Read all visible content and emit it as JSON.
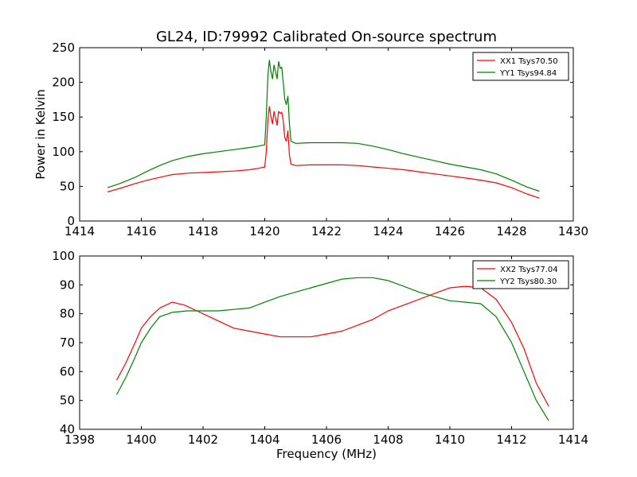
{
  "title": "GL24, ID:79992 Calibrated On-source spectrum",
  "colors": {
    "red": "#ff0000",
    "green": "#008000"
  },
  "chart_data": [
    {
      "type": "line",
      "xlabel": "",
      "ylabel": "Power in Kelvin",
      "xlim": [
        1414,
        1430
      ],
      "ylim": [
        0,
        250
      ],
      "xticks": [
        1414,
        1416,
        1418,
        1420,
        1422,
        1424,
        1426,
        1428,
        1430
      ],
      "yticks": [
        0,
        50,
        100,
        150,
        200,
        250
      ],
      "legend_position": "top-right",
      "series": [
        {
          "name": "XX1 Tsys70.50",
          "color": "#ff0000",
          "points": [
            [
              1414.9,
              42
            ],
            [
              1415.3,
              47
            ],
            [
              1415.8,
              54
            ],
            [
              1416.2,
              59
            ],
            [
              1416.6,
              63
            ],
            [
              1417.0,
              67
            ],
            [
              1417.5,
              69
            ],
            [
              1418.0,
              70
            ],
            [
              1418.5,
              71
            ],
            [
              1419.0,
              72
            ],
            [
              1419.5,
              74
            ],
            [
              1419.8,
              76
            ],
            [
              1420.0,
              78
            ],
            [
              1420.05,
              100
            ],
            [
              1420.1,
              145
            ],
            [
              1420.15,
              165
            ],
            [
              1420.2,
              150
            ],
            [
              1420.25,
              140
            ],
            [
              1420.3,
              158
            ],
            [
              1420.35,
              148
            ],
            [
              1420.4,
              138
            ],
            [
              1420.45,
              158
            ],
            [
              1420.5,
              155
            ],
            [
              1420.55,
              157
            ],
            [
              1420.6,
              145
            ],
            [
              1420.65,
              120
            ],
            [
              1420.7,
              115
            ],
            [
              1420.75,
              130
            ],
            [
              1420.8,
              95
            ],
            [
              1420.85,
              82
            ],
            [
              1421.0,
              80
            ],
            [
              1421.5,
              81
            ],
            [
              1422.0,
              81
            ],
            [
              1422.5,
              81
            ],
            [
              1423.0,
              80
            ],
            [
              1423.5,
              78
            ],
            [
              1424.0,
              76
            ],
            [
              1424.5,
              74
            ],
            [
              1425.0,
              71
            ],
            [
              1425.5,
              68
            ],
            [
              1426.0,
              65
            ],
            [
              1426.5,
              62
            ],
            [
              1427.0,
              59
            ],
            [
              1427.5,
              55
            ],
            [
              1428.0,
              48
            ],
            [
              1428.5,
              39
            ],
            [
              1428.9,
              33
            ]
          ]
        },
        {
          "name": "YY1 Tsys94.84",
          "color": "#008000",
          "points": [
            [
              1414.9,
              48
            ],
            [
              1415.3,
              54
            ],
            [
              1415.8,
              63
            ],
            [
              1416.2,
              72
            ],
            [
              1416.6,
              80
            ],
            [
              1417.0,
              87
            ],
            [
              1417.5,
              93
            ],
            [
              1418.0,
              97
            ],
            [
              1418.5,
              100
            ],
            [
              1419.0,
              103
            ],
            [
              1419.5,
              106
            ],
            [
              1419.8,
              108
            ],
            [
              1420.0,
              110
            ],
            [
              1420.05,
              150
            ],
            [
              1420.1,
              210
            ],
            [
              1420.15,
              232
            ],
            [
              1420.2,
              215
            ],
            [
              1420.25,
              205
            ],
            [
              1420.3,
              225
            ],
            [
              1420.35,
              215
            ],
            [
              1420.4,
              205
            ],
            [
              1420.45,
              230
            ],
            [
              1420.5,
              220
            ],
            [
              1420.55,
              222
            ],
            [
              1420.6,
              200
            ],
            [
              1420.65,
              175
            ],
            [
              1420.7,
              168
            ],
            [
              1420.75,
              180
            ],
            [
              1420.8,
              140
            ],
            [
              1420.85,
              115
            ],
            [
              1421.0,
              112
            ],
            [
              1421.5,
              113
            ],
            [
              1422.0,
              113
            ],
            [
              1422.5,
              113
            ],
            [
              1423.0,
              112
            ],
            [
              1423.5,
              108
            ],
            [
              1424.0,
              103
            ],
            [
              1424.5,
              97
            ],
            [
              1425.0,
              92
            ],
            [
              1425.5,
              87
            ],
            [
              1426.0,
              82
            ],
            [
              1426.5,
              78
            ],
            [
              1427.0,
              74
            ],
            [
              1427.5,
              68
            ],
            [
              1428.0,
              59
            ],
            [
              1428.5,
              49
            ],
            [
              1428.9,
              43
            ]
          ]
        }
      ]
    },
    {
      "type": "line",
      "xlabel": "Frequency (MHz)",
      "ylabel": "",
      "xlim": [
        1398,
        1414
      ],
      "ylim": [
        40,
        100
      ],
      "xticks": [
        1398,
        1400,
        1402,
        1404,
        1406,
        1408,
        1410,
        1412,
        1414
      ],
      "yticks": [
        40,
        50,
        60,
        70,
        80,
        90,
        100
      ],
      "legend_position": "top-right",
      "series": [
        {
          "name": "XX2 Tsys77.04",
          "color": "#ff0000",
          "points": [
            [
              1399.2,
              57
            ],
            [
              1399.5,
              63
            ],
            [
              1399.8,
              70
            ],
            [
              1400.0,
              75
            ],
            [
              1400.3,
              79
            ],
            [
              1400.6,
              82
            ],
            [
              1401.0,
              84
            ],
            [
              1401.4,
              83
            ],
            [
              1401.8,
              81
            ],
            [
              1402.2,
              79
            ],
            [
              1402.6,
              77
            ],
            [
              1403.0,
              75
            ],
            [
              1403.5,
              74
            ],
            [
              1404.0,
              73
            ],
            [
              1404.5,
              72
            ],
            [
              1405.0,
              72
            ],
            [
              1405.5,
              72
            ],
            [
              1406.0,
              73
            ],
            [
              1406.5,
              74
            ],
            [
              1407.0,
              76
            ],
            [
              1407.5,
              78
            ],
            [
              1408.0,
              81
            ],
            [
              1408.5,
              83
            ],
            [
              1409.0,
              85
            ],
            [
              1409.5,
              87
            ],
            [
              1410.0,
              89
            ],
            [
              1410.5,
              89.5
            ],
            [
              1411.0,
              89
            ],
            [
              1411.5,
              85
            ],
            [
              1412.0,
              77
            ],
            [
              1412.4,
              68
            ],
            [
              1412.8,
              56
            ],
            [
              1413.2,
              48
            ]
          ]
        },
        {
          "name": "YY2 Tsys80.30",
          "color": "#008000",
          "points": [
            [
              1399.2,
              52
            ],
            [
              1399.5,
              58
            ],
            [
              1399.8,
              65
            ],
            [
              1400.0,
              70
            ],
            [
              1400.3,
              75
            ],
            [
              1400.6,
              79
            ],
            [
              1401.0,
              80.5
            ],
            [
              1401.5,
              81
            ],
            [
              1402.0,
              81
            ],
            [
              1402.5,
              81
            ],
            [
              1403.0,
              81.5
            ],
            [
              1403.5,
              82
            ],
            [
              1404.0,
              84
            ],
            [
              1404.5,
              86
            ],
            [
              1405.0,
              87.5
            ],
            [
              1405.5,
              89
            ],
            [
              1406.0,
              90.5
            ],
            [
              1406.5,
              92
            ],
            [
              1407.0,
              92.5
            ],
            [
              1407.5,
              92.5
            ],
            [
              1408.0,
              91.5
            ],
            [
              1408.5,
              89.5
            ],
            [
              1409.0,
              87.5
            ],
            [
              1409.5,
              86
            ],
            [
              1410.0,
              84.5
            ],
            [
              1410.5,
              84
            ],
            [
              1411.0,
              83.5
            ],
            [
              1411.5,
              79
            ],
            [
              1412.0,
              70
            ],
            [
              1412.4,
              60
            ],
            [
              1412.8,
              50
            ],
            [
              1413.2,
              43
            ]
          ]
        }
      ]
    }
  ]
}
